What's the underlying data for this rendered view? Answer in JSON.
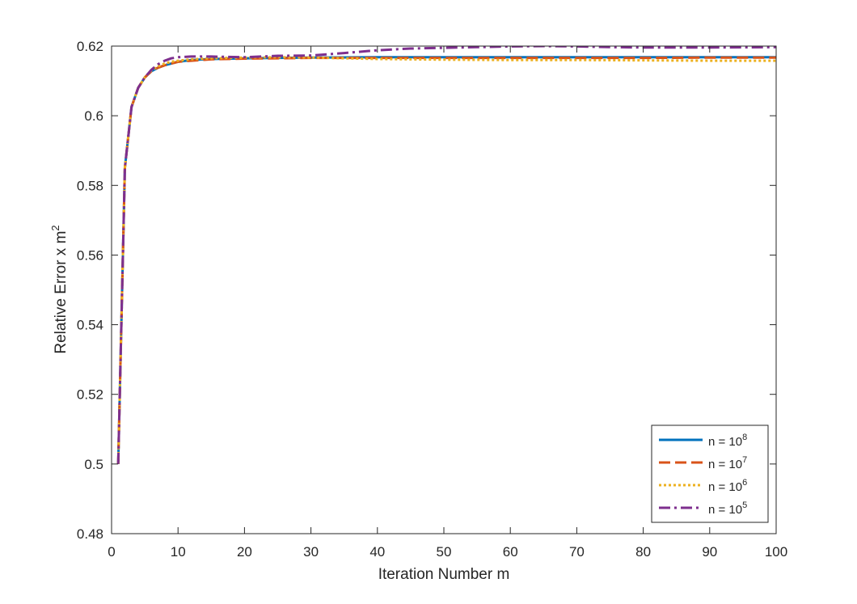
{
  "chart_data": {
    "type": "line",
    "title": "",
    "xlabel": "Iteration Number m",
    "ylabel_text": "Relative Error x m",
    "ylabel_sup": "2",
    "xlim": [
      0,
      100
    ],
    "ylim": [
      0.48,
      0.62
    ],
    "xticks": [
      "0",
      "10",
      "20",
      "30",
      "40",
      "50",
      "60",
      "70",
      "80",
      "90",
      "100"
    ],
    "yticks": [
      "0.48",
      "0.5",
      "0.52",
      "0.54",
      "0.56",
      "0.58",
      "0.6",
      "0.62"
    ],
    "grid": false,
    "legend_position": "bottom-right",
    "series": [
      {
        "name_base": "n = 10",
        "name_exp": "8",
        "color": "#0072BD",
        "style": "solid",
        "x": [
          1,
          2,
          3,
          4,
          5,
          6,
          7,
          8,
          9,
          10,
          12,
          15,
          20,
          25,
          30,
          40,
          50,
          60,
          70,
          80,
          90,
          100
        ],
        "y": [
          0.5,
          0.585,
          0.6025,
          0.608,
          0.611,
          0.6128,
          0.6138,
          0.6145,
          0.615,
          0.6155,
          0.616,
          0.6163,
          0.6165,
          0.6166,
          0.6167,
          0.6168,
          0.6168,
          0.6168,
          0.6168,
          0.6168,
          0.6168,
          0.6168
        ]
      },
      {
        "name_base": "n = 10",
        "name_exp": "7",
        "color": "#D95319",
        "style": "dashed",
        "x": [
          1,
          2,
          3,
          4,
          5,
          6,
          7,
          8,
          9,
          10,
          12,
          15,
          20,
          25,
          30,
          40,
          50,
          60,
          70,
          80,
          90,
          100
        ],
        "y": [
          0.5,
          0.585,
          0.6025,
          0.608,
          0.611,
          0.6128,
          0.6138,
          0.6145,
          0.615,
          0.6155,
          0.6158,
          0.6162,
          0.6164,
          0.6165,
          0.6166,
          0.6166,
          0.6166,
          0.6166,
          0.6166,
          0.6166,
          0.6167,
          0.6167
        ]
      },
      {
        "name_base": "n = 10",
        "name_exp": "6",
        "color": "#EDB120",
        "style": "dotted",
        "x": [
          1,
          2,
          3,
          4,
          5,
          6,
          7,
          8,
          9,
          10,
          12,
          15,
          20,
          25,
          30,
          40,
          50,
          60,
          70,
          80,
          90,
          100
        ],
        "y": [
          0.5,
          0.585,
          0.6025,
          0.608,
          0.611,
          0.613,
          0.6142,
          0.615,
          0.6155,
          0.6158,
          0.6162,
          0.6165,
          0.6167,
          0.6168,
          0.6167,
          0.6163,
          0.6161,
          0.616,
          0.616,
          0.6159,
          0.6158,
          0.6158
        ]
      },
      {
        "name_base": "n = 10",
        "name_exp": "5",
        "color": "#7E2F8E",
        "style": "dashdot",
        "x": [
          1,
          2,
          3,
          4,
          5,
          6,
          7,
          8,
          9,
          10,
          12,
          15,
          20,
          25,
          30,
          35,
          40,
          45,
          50,
          55,
          60,
          65,
          70,
          75,
          80,
          90,
          100
        ],
        "y": [
          0.5,
          0.585,
          0.6025,
          0.608,
          0.611,
          0.6132,
          0.6148,
          0.6158,
          0.6165,
          0.6168,
          0.617,
          0.617,
          0.6168,
          0.6172,
          0.6173,
          0.618,
          0.6188,
          0.6193,
          0.6195,
          0.6197,
          0.6199,
          0.62,
          0.6199,
          0.6197,
          0.6196,
          0.6196,
          0.6197
        ]
      }
    ]
  }
}
